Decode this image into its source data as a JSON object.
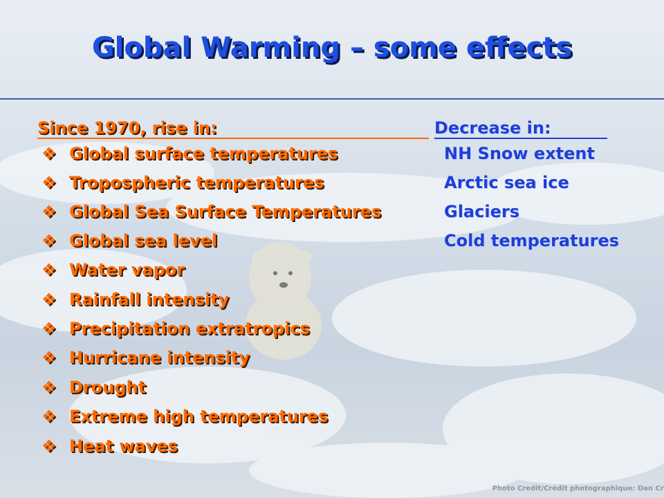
{
  "title": "Global Warming – some effects",
  "rise": {
    "heading": "Since 1970, rise in:",
    "items": [
      "Global surface temperatures",
      "Tropospheric temperatures",
      "Global Sea Surface Temperatures",
      "Global sea level",
      "Water vapor",
      "Rainfall intensity",
      "Precipitation extratropics",
      "Hurricane intensity",
      "Drought",
      "Extreme high temperatures",
      "Heat waves"
    ]
  },
  "decrease": {
    "heading": "Decrease in:",
    "items": [
      "NH Snow extent",
      "Arctic sea ice",
      "Glaciers",
      "Cold temperatures"
    ]
  },
  "credit": "Photo Credit/Crédit photographique: Dan Crosbie"
}
